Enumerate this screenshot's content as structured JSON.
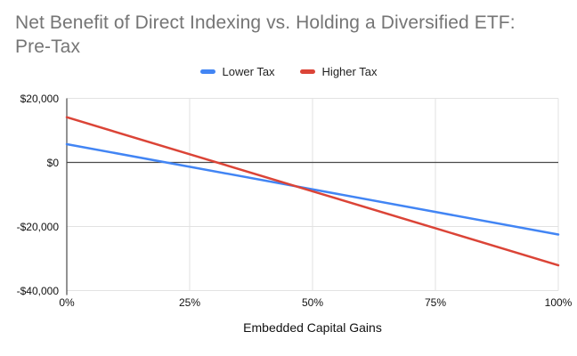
{
  "chart": {
    "title_line1": "Net Benefit of Direct Indexing vs. Holding a Diversified ETF:",
    "title_line2": "Pre-Tax",
    "x_axis_title": "Embedded Capital Gains"
  },
  "chart_data": {
    "type": "line",
    "title": "Net Benefit of Direct Indexing vs. Holding a Diversified ETF: Pre-Tax",
    "xlabel": "Embedded Capital Gains",
    "ylabel": "",
    "x": [
      0,
      25,
      50,
      75,
      100
    ],
    "x_tick_labels": [
      "0%",
      "25%",
      "50%",
      "75%",
      "100%"
    ],
    "xlim": [
      0,
      100
    ],
    "y_ticks": [
      20000,
      0,
      -20000,
      -40000
    ],
    "y_tick_labels": [
      "$20,000",
      "$0",
      "-$20,000",
      "-$40,000"
    ],
    "ylim": [
      -40000,
      20000
    ],
    "grid": true,
    "legend_position": "top",
    "series": [
      {
        "name": "Lower Tax",
        "color": "#4285f4",
        "values": [
          5700,
          -1350,
          -8400,
          -15450,
          -22500
        ]
      },
      {
        "name": "Higher Tax",
        "color": "#db4437",
        "values": [
          14100,
          2550,
          -9000,
          -20550,
          -32100
        ]
      }
    ]
  }
}
